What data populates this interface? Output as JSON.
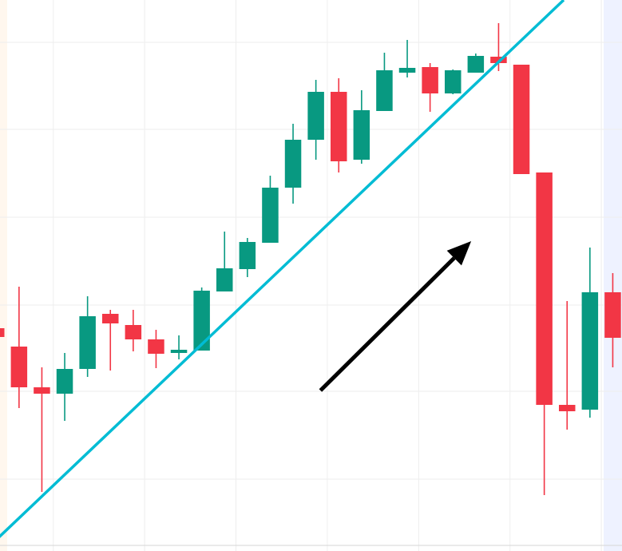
{
  "chart_data": {
    "type": "candlestick",
    "title": "",
    "xlabel": "",
    "ylabel": "",
    "grid": true,
    "ylim": [
      0,
      690
    ],
    "colors": {
      "up": "#089981",
      "down": "#f23645",
      "trendline": "#00bcd4",
      "arrow": "#000000",
      "grid": "#eeeeee",
      "left_edge": "#fff7ee",
      "right_edge": "#eef2ff"
    },
    "candles": [
      {
        "o": 279,
        "h": 279,
        "l": 268,
        "c": 268
      },
      {
        "o": 256,
        "h": 331,
        "l": 179,
        "c": 205
      },
      {
        "o": 205,
        "h": 230,
        "l": 74,
        "c": 197
      },
      {
        "o": 197,
        "h": 248,
        "l": 163,
        "c": 228
      },
      {
        "o": 228,
        "h": 319,
        "l": 218,
        "c": 294
      },
      {
        "o": 297,
        "h": 302,
        "l": 226,
        "c": 285
      },
      {
        "o": 283,
        "h": 302,
        "l": 250,
        "c": 265
      },
      {
        "o": 265,
        "h": 277,
        "l": 229,
        "c": 247
      },
      {
        "o": 248,
        "h": 270,
        "l": 240,
        "c": 252
      },
      {
        "o": 251,
        "h": 330,
        "l": 251,
        "c": 326
      },
      {
        "o": 325,
        "h": 400,
        "l": 325,
        "c": 354
      },
      {
        "o": 353,
        "h": 392,
        "l": 343,
        "c": 387
      },
      {
        "o": 386,
        "h": 470,
        "l": 386,
        "c": 455
      },
      {
        "o": 455,
        "h": 535,
        "l": 435,
        "c": 515
      },
      {
        "o": 515,
        "h": 590,
        "l": 490,
        "c": 575
      },
      {
        "o": 575,
        "h": 592,
        "l": 474,
        "c": 488
      },
      {
        "o": 490,
        "h": 577,
        "l": 485,
        "c": 552
      },
      {
        "o": 551,
        "h": 624,
        "l": 551,
        "c": 602
      },
      {
        "o": 599,
        "h": 640,
        "l": 593,
        "c": 605
      },
      {
        "o": 606,
        "h": 611,
        "l": 550,
        "c": 573
      },
      {
        "o": 573,
        "h": 603,
        "l": 572,
        "c": 602
      },
      {
        "o": 599,
        "h": 623,
        "l": 599,
        "c": 620
      },
      {
        "o": 619,
        "h": 661,
        "l": 601,
        "c": 611
      },
      {
        "o": 609,
        "h": 609,
        "l": 472,
        "c": 472
      },
      {
        "o": 474,
        "h": 474,
        "l": 70,
        "c": 183
      },
      {
        "o": 183,
        "h": 313,
        "l": 152,
        "c": 175
      },
      {
        "o": 177,
        "h": 380,
        "l": 167,
        "c": 324
      },
      {
        "o": 324,
        "h": 348,
        "l": 230,
        "c": 267
      }
    ],
    "trendline": {
      "x1": 0,
      "y1": 14,
      "x2": 24.85,
      "y2": 690
    },
    "arrow": {
      "x1": 14.2,
      "y1": 201,
      "x2": 20.8,
      "y2": 388
    },
    "x_gridlines": [
      2.5,
      6.5,
      10.5,
      14.5,
      18.5,
      22.5,
      26.5
    ],
    "y_gridlines": [
      90,
      200,
      308,
      418,
      528,
      637
    ]
  }
}
